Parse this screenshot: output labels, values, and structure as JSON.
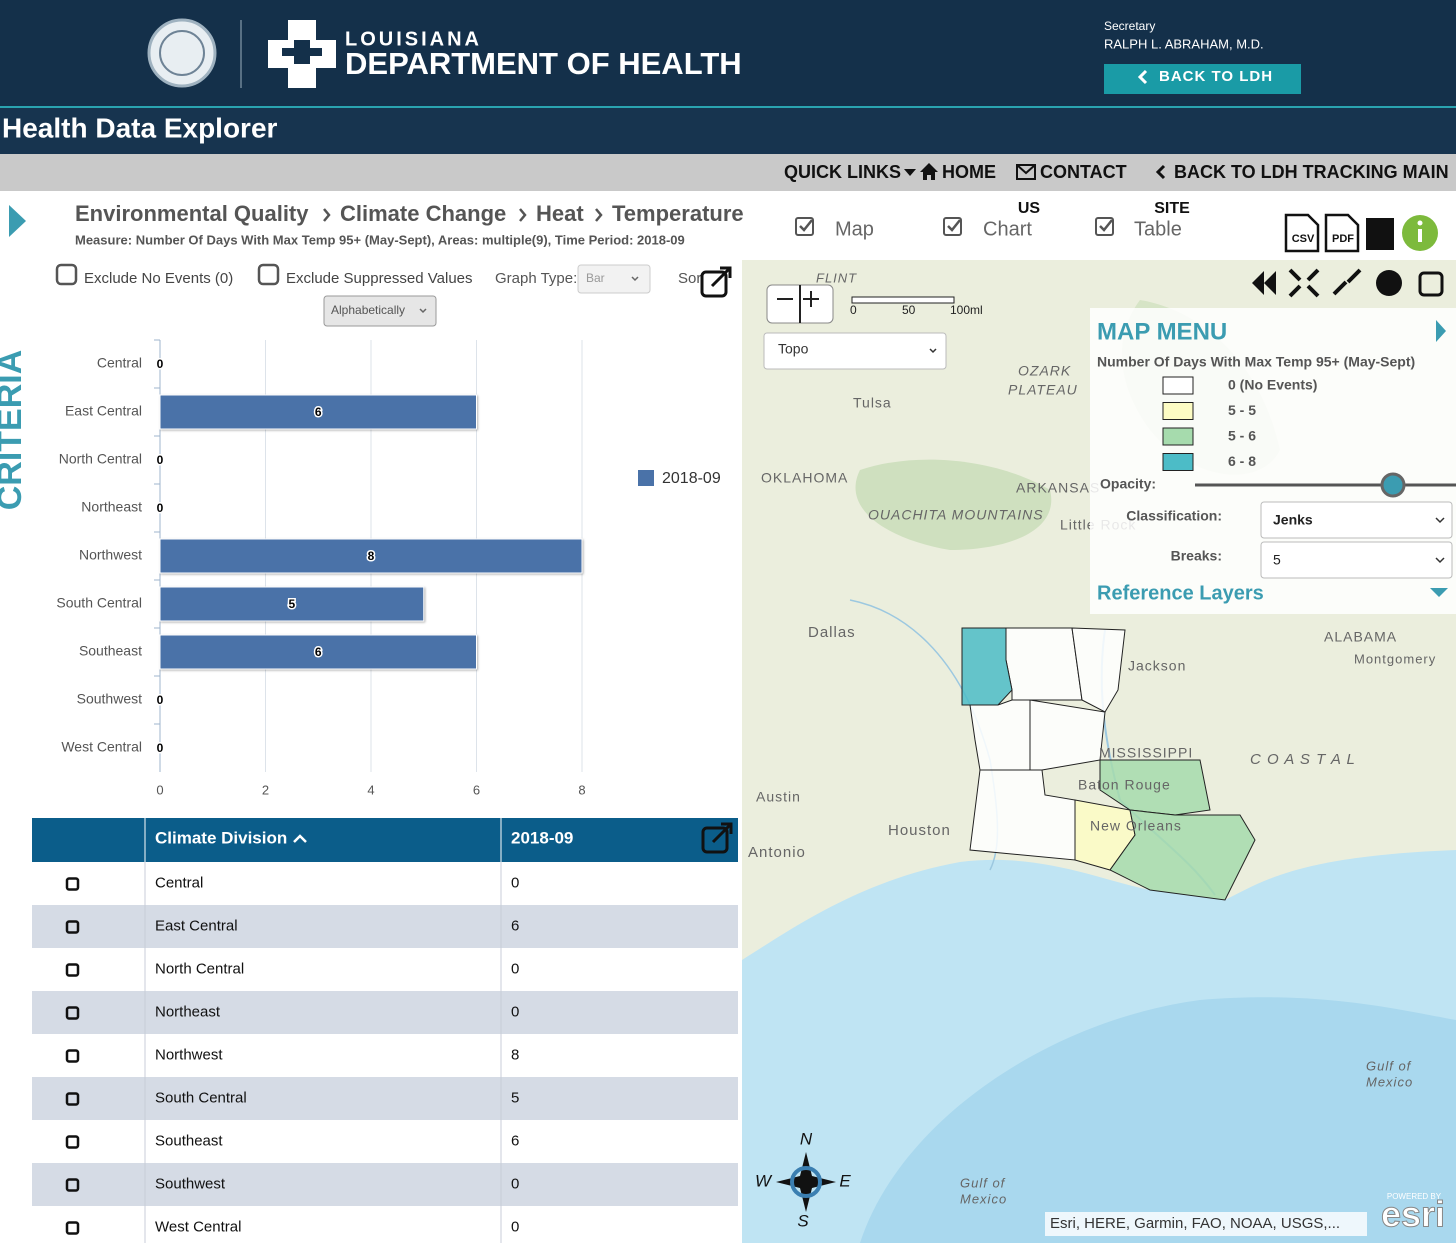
{
  "header": {
    "logo_top": "LOUISIANA",
    "logo_main": "DEPARTMENT OF HEALTH",
    "secretary_label": "Secretary",
    "secretary_name": "RALPH L. ABRAHAM, M.D.",
    "back_button": "BACK TO LDH"
  },
  "app_title": "Health Data Explorer",
  "nav": [
    "QUICK LINKS",
    "HOME",
    "CONTACT",
    "BACK TO LDH TRACKING MAIN"
  ],
  "breadcrumb": [
    "Environmental Quality",
    "Climate Change",
    "Heat",
    "Temperature"
  ],
  "measure": "Measure: Number Of Days With Max Temp 95+ (May-Sept), Areas: multiple(9), Time Period: 2018-09",
  "views": [
    {
      "label": "Map"
    },
    {
      "top": "US",
      "label": "Chart"
    },
    {
      "top": "SITE",
      "label": "Table"
    }
  ],
  "exports": [
    "CSV",
    "PDF"
  ],
  "sidebar_label": "CRITERIA",
  "options": {
    "exclude_no_events": "Exclude No Events (0)",
    "exclude_suppressed": "Exclude Suppressed Values",
    "graph_type_label": "Graph Type:",
    "graph_type": "Bar",
    "sort_label": "Sort",
    "sort": "Alphabetically"
  },
  "chart_data": {
    "type": "bar",
    "orientation": "horizontal",
    "categories": [
      "Central",
      "East Central",
      "North Central",
      "Northeast",
      "Northwest",
      "South Central",
      "Southeast",
      "Southwest",
      "West Central"
    ],
    "series": [
      {
        "name": "2018-09",
        "color": "#4a72a8",
        "values": [
          0,
          6,
          0,
          0,
          8,
          5,
          6,
          0,
          0
        ]
      }
    ],
    "xlim": [
      0,
      8
    ],
    "xticks": [
      0,
      2,
      4,
      6,
      8
    ],
    "grid": true,
    "data_labels": true,
    "legend": "right"
  },
  "table": {
    "headers": [
      "Climate Division",
      "2018-09"
    ]
  },
  "map": {
    "basemap": "Topo",
    "scale": [
      "0",
      "50",
      "100ml"
    ],
    "places": [
      "FLINT",
      "OZARK",
      "PLATEAU",
      "Tulsa",
      "OKLAHOMA",
      "ARKANSAS",
      "OUACHITA MOUNTAINS",
      "Little Rock",
      "Dallas",
      "Austin",
      "Houston",
      "Antonio",
      "Jackson",
      "MISSISSIPPI",
      "Baton Rouge",
      "New Orleans",
      "ALABAMA",
      "Montgomery",
      "C O A S T A L",
      "Gulf of",
      "Mexico",
      "Gulf of",
      "Mexico"
    ],
    "compass": [
      "N",
      "E",
      "S",
      "W"
    ],
    "attribution": "Esri, HERE, Garmin, FAO, NOAA, USGS,...",
    "powered_by": "POWERED BY",
    "esri": "esri"
  },
  "map_menu": {
    "title": "MAP MENU",
    "legend_title": "Number Of Days With Max Temp 95+ (May-Sept)",
    "legend": [
      {
        "label": "0 (No Events)",
        "color": "#ffffff"
      },
      {
        "label": "5 - 5",
        "color": "#fdfcc4"
      },
      {
        "label": "5 - 6",
        "color": "#a6dbad"
      },
      {
        "label": "6 - 8",
        "color": "#4cbcc7"
      }
    ],
    "opacity_label": "Opacity:",
    "classification_label": "Classification:",
    "classification": "Jenks",
    "breaks_label": "Breaks:",
    "breaks": "5",
    "reference_layers": "Reference Layers"
  }
}
